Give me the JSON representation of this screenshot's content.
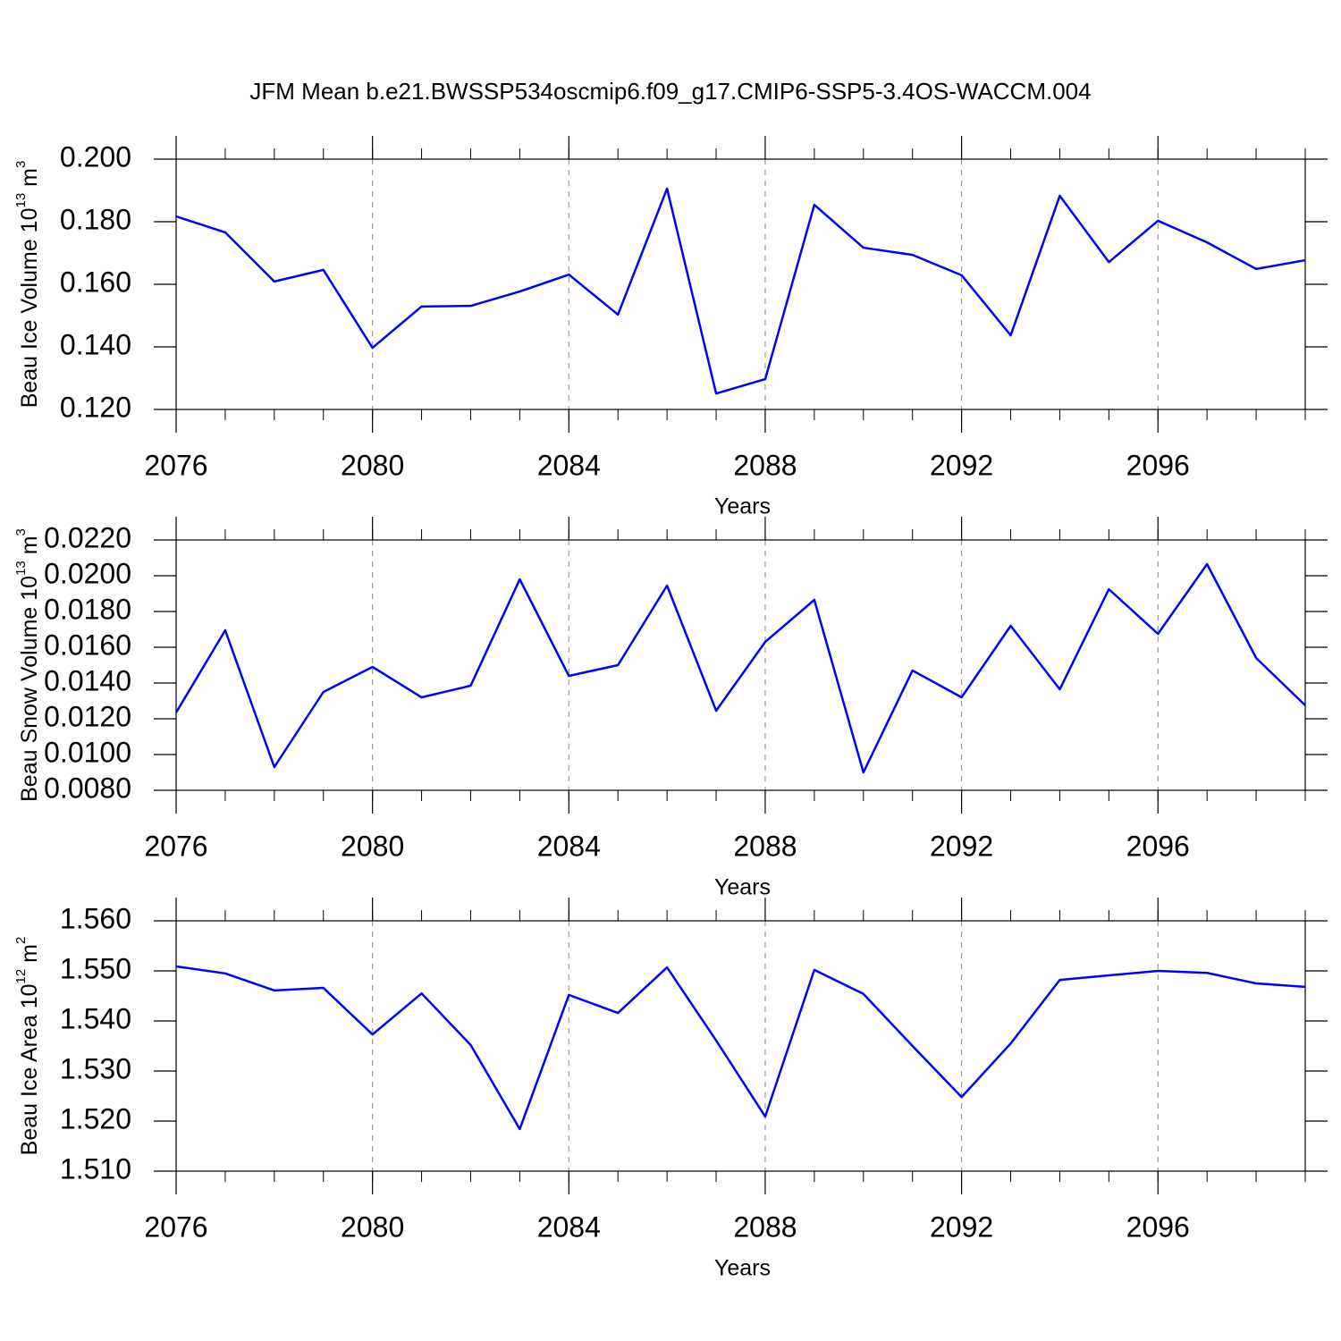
{
  "title": "JFM Mean b.e21.BWSSP534oscmip6.f09_g17.CMIP6-SSP5-3.4OS-WACCM.004",
  "chart_data": [
    {
      "type": "line",
      "ylabel": {
        "text": "Beau Ice Volume 10",
        "exponent": "13",
        "unit": " m",
        "unit_exponent": "3"
      },
      "xlabel": "Years",
      "x": [
        2076,
        2077,
        2078,
        2079,
        2080,
        2081,
        2082,
        2083,
        2084,
        2085,
        2086,
        2087,
        2088,
        2089,
        2090,
        2091,
        2092,
        2093,
        2094,
        2095,
        2096,
        2097,
        2098,
        2099
      ],
      "series": [
        {
          "color": "#0000ff",
          "values": [
            0.1817,
            0.1766,
            0.1609,
            0.1646,
            0.1397,
            0.1529,
            0.1531,
            0.1577,
            0.1631,
            0.1503,
            0.1906,
            0.1251,
            0.1297,
            0.1854,
            0.1717,
            0.1694,
            0.1629,
            0.1437,
            0.1883,
            0.1671,
            0.1803,
            0.1734,
            0.1649,
            0.1677
          ]
        }
      ],
      "xlim": [
        2076,
        2099
      ],
      "xticks": [
        2076,
        2080,
        2084,
        2088,
        2092,
        2096
      ],
      "ylim": [
        0.12,
        0.2
      ],
      "yticks": [
        {
          "value": 0.12,
          "label": "0.120"
        },
        {
          "value": 0.14,
          "label": "0.140"
        },
        {
          "value": 0.16,
          "label": "0.160"
        },
        {
          "value": 0.18,
          "label": "0.180"
        },
        {
          "value": 0.2,
          "label": "0.200"
        }
      ],
      "grid": true
    },
    {
      "type": "line",
      "ylabel": {
        "text": "Beau Snow Volume 10",
        "exponent": "13",
        "unit": " m",
        "unit_exponent": "3"
      },
      "xlabel": "Years",
      "x": [
        2076,
        2077,
        2078,
        2079,
        2080,
        2081,
        2082,
        2083,
        2084,
        2085,
        2086,
        2087,
        2088,
        2089,
        2090,
        2091,
        2092,
        2093,
        2094,
        2095,
        2096,
        2097,
        2098,
        2099
      ],
      "series": [
        {
          "color": "#0000ff",
          "values": [
            0.01235,
            0.01695,
            0.0093,
            0.0135,
            0.0149,
            0.0132,
            0.01385,
            0.0198,
            0.0144,
            0.015,
            0.01945,
            0.01245,
            0.0163,
            0.01865,
            0.009,
            0.0147,
            0.0132,
            0.0172,
            0.01365,
            0.01925,
            0.01675,
            0.02065,
            0.0154,
            0.01275
          ]
        }
      ],
      "xlim": [
        2076,
        2099
      ],
      "xticks": [
        2076,
        2080,
        2084,
        2088,
        2092,
        2096
      ],
      "ylim": [
        0.008,
        0.022
      ],
      "yticks": [
        {
          "value": 0.008,
          "label": "0.0080"
        },
        {
          "value": 0.01,
          "label": "0.0100"
        },
        {
          "value": 0.012,
          "label": "0.0120"
        },
        {
          "value": 0.014,
          "label": "0.0140"
        },
        {
          "value": 0.016,
          "label": "0.0160"
        },
        {
          "value": 0.018,
          "label": "0.0180"
        },
        {
          "value": 0.02,
          "label": "0.0200"
        },
        {
          "value": 0.022,
          "label": "0.0220"
        }
      ],
      "grid": true
    },
    {
      "type": "line",
      "ylabel": {
        "text": "Beau Ice Area 10",
        "exponent": "12",
        "unit": " m",
        "unit_exponent": "2"
      },
      "xlabel": "Years",
      "x": [
        2076,
        2077,
        2078,
        2079,
        2080,
        2081,
        2082,
        2083,
        2084,
        2085,
        2086,
        2087,
        2088,
        2089,
        2090,
        2091,
        2092,
        2093,
        2094,
        2095,
        2096,
        2097,
        2098,
        2099
      ],
      "series": [
        {
          "color": "#0000ff",
          "values": [
            1.5509,
            1.5495,
            1.5461,
            1.5466,
            1.5373,
            1.5455,
            1.5352,
            1.5184,
            1.5452,
            1.5416,
            1.5507,
            1.5361,
            1.5209,
            1.5502,
            1.5454,
            1.535,
            1.5248,
            1.5355,
            1.5482,
            1.5491,
            1.55,
            1.5496,
            1.5475,
            1.5468
          ]
        }
      ],
      "xlim": [
        2076,
        2099
      ],
      "xticks": [
        2076,
        2080,
        2084,
        2088,
        2092,
        2096
      ],
      "ylim": [
        1.51,
        1.56
      ],
      "yticks": [
        {
          "value": 1.51,
          "label": "1.510"
        },
        {
          "value": 1.52,
          "label": "1.520"
        },
        {
          "value": 1.53,
          "label": "1.530"
        },
        {
          "value": 1.54,
          "label": "1.540"
        },
        {
          "value": 1.55,
          "label": "1.550"
        },
        {
          "value": 1.56,
          "label": "1.560"
        }
      ],
      "grid": true
    }
  ]
}
